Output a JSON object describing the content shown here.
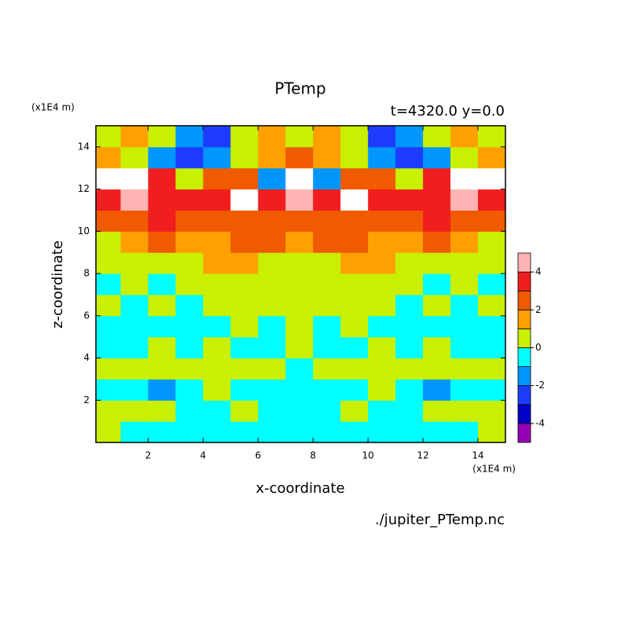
{
  "chart_data": {
    "type": "contour",
    "title": "PTemp",
    "subtitle": "t=4320.0 y=0.0",
    "x_label": "x-coordinate",
    "y_label": "z-coordinate",
    "x_unit": "(x1E4 m)",
    "y_unit": "(x1E4 m)",
    "file_label": "./jupiter_PTemp.nc",
    "xlim": [
      0.1,
      15
    ],
    "ylim": [
      0,
      15
    ],
    "xticks": [
      2,
      4,
      6,
      8,
      10,
      12,
      14
    ],
    "yticks": [
      2,
      4,
      6,
      8,
      10,
      12,
      14
    ],
    "x": [
      0.5,
      1.5,
      2.5,
      3.5,
      4.5,
      5.5,
      6.5,
      7.5,
      8.5,
      9.5,
      10.5,
      11.5,
      12.5,
      13.5,
      14.5
    ],
    "y": [
      0.5,
      1.5,
      2.5,
      3.5,
      4.5,
      5.5,
      6.5,
      7.5,
      8.5,
      9.5,
      10.5,
      11.5,
      12.5,
      13.5,
      14.5
    ],
    "values": [
      [
        0.5,
        -0.5,
        -0.5,
        -0.5,
        -0.5,
        -0.5,
        -0.5,
        -0.5,
        -0.5,
        -0.5,
        -0.5,
        -0.5,
        -0.5,
        -0.5,
        0.5
      ],
      [
        0.5,
        0.5,
        0.5,
        -0.5,
        -0.5,
        0.5,
        -0.5,
        -0.5,
        -0.5,
        0.5,
        -0.5,
        -0.5,
        0.5,
        0.5,
        0.5
      ],
      [
        -0.5,
        -0.5,
        -1.5,
        -0.5,
        0.5,
        -0.5,
        -0.5,
        -0.5,
        -0.5,
        -0.5,
        0.5,
        -0.5,
        -1.5,
        -0.5,
        -0.5
      ],
      [
        0.5,
        0.5,
        0.5,
        0.5,
        0.5,
        0.5,
        0.5,
        -0.5,
        0.5,
        0.5,
        0.5,
        0.5,
        0.5,
        0.5,
        0.5
      ],
      [
        -0.5,
        -0.5,
        0.5,
        -0.5,
        0.5,
        -0.5,
        -0.5,
        0.5,
        -0.5,
        -0.5,
        0.5,
        -0.5,
        0.5,
        -0.5,
        -0.5
      ],
      [
        -0.5,
        -0.5,
        -0.5,
        -0.5,
        -0.5,
        0.5,
        -0.5,
        0.5,
        -0.5,
        0.5,
        -0.5,
        -0.5,
        -0.5,
        -0.5,
        -0.5
      ],
      [
        0.5,
        -0.5,
        0.5,
        -0.5,
        0.5,
        0.5,
        0.5,
        0.5,
        0.5,
        0.5,
        0.5,
        -0.5,
        0.5,
        -0.5,
        0.5
      ],
      [
        -0.5,
        0.5,
        -0.5,
        0.5,
        0.5,
        0.5,
        0.5,
        0.5,
        0.5,
        0.5,
        0.5,
        0.5,
        -0.5,
        0.5,
        -0.5
      ],
      [
        0.5,
        0.5,
        0.5,
        0.5,
        1.5,
        1.5,
        0.5,
        0.5,
        0.5,
        1.5,
        1.5,
        0.5,
        0.5,
        0.5,
        0.5
      ],
      [
        0.5,
        1.5,
        2.5,
        1.5,
        1.5,
        2.5,
        2.5,
        1.5,
        2.5,
        2.5,
        1.5,
        1.5,
        2.5,
        1.5,
        0.5
      ],
      [
        2.5,
        2.5,
        3.5,
        2.5,
        2.5,
        2.5,
        2.5,
        2.5,
        2.5,
        2.5,
        2.5,
        2.5,
        3.5,
        2.5,
        2.5
      ],
      [
        3.5,
        4.5,
        3.5,
        3.5,
        3.5,
        5.5,
        3.5,
        4.5,
        3.5,
        5.5,
        3.5,
        3.5,
        3.5,
        4.5,
        3.5
      ],
      [
        5.5,
        5.5,
        3.5,
        0.5,
        2.5,
        2.5,
        -1.5,
        5.5,
        -1.5,
        2.5,
        2.5,
        0.5,
        3.5,
        5.5,
        5.5
      ],
      [
        1.5,
        0.5,
        -1.5,
        -2.5,
        -1.5,
        0.5,
        1.5,
        2.5,
        1.5,
        0.5,
        -1.5,
        -2.5,
        -1.5,
        0.5,
        1.5
      ],
      [
        0.5,
        1.5,
        0.5,
        -1.5,
        -2.5,
        0.5,
        1.5,
        0.5,
        1.5,
        0.5,
        -2.5,
        -1.5,
        0.5,
        1.5,
        0.5
      ]
    ],
    "levels": [
      -5,
      -4,
      -3,
      -2,
      -1,
      0,
      1,
      2,
      3,
      4,
      5
    ],
    "colorbar_ticks": [
      -4,
      -2,
      0,
      2,
      4
    ],
    "colors": [
      "#9600b4",
      "#0000c8",
      "#1e3cff",
      "#0096ff",
      "#00ffff",
      "#c8f000",
      "#ffa000",
      "#f05a00",
      "#f01e1e",
      "#ffb4b4"
    ],
    "over_color": "#ffffff"
  }
}
